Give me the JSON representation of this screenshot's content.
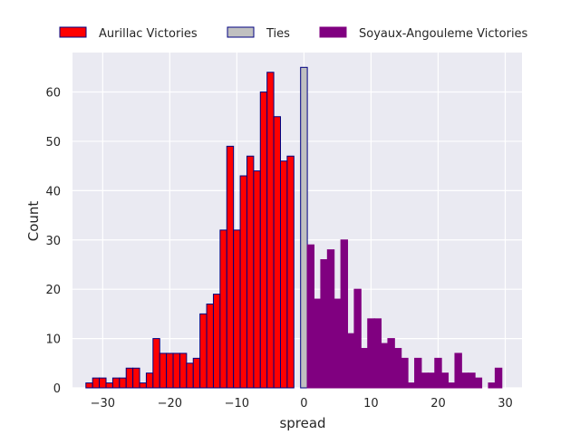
{
  "chart_data": {
    "type": "bar",
    "xlabel": "spread",
    "ylabel": "Count",
    "xlim": [
      -34.5,
      32.5
    ],
    "ylim": [
      0,
      68
    ],
    "xticks": [
      -30,
      -20,
      -10,
      0,
      10,
      20,
      30
    ],
    "yticks": [
      0,
      10,
      20,
      30,
      40,
      50,
      60
    ],
    "grid": true,
    "legend_position": "top",
    "background": "#eaeaf2",
    "series": [
      {
        "name": "Aurillac Victories",
        "color": "#ff0000",
        "edgecolor": "#000080",
        "x": [
          -32,
          -31,
          -30,
          -29,
          -28,
          -27,
          -26,
          -25,
          -24,
          -23,
          -22,
          -21,
          -20,
          -19,
          -18,
          -17,
          -16,
          -15,
          -14,
          -13,
          -12,
          -11,
          -10,
          -9,
          -8,
          -7,
          -6,
          -5,
          -4,
          -3,
          -2,
          -1
        ],
        "values": [
          1,
          2,
          2,
          1,
          2,
          2,
          4,
          4,
          1,
          3,
          10,
          7,
          7,
          7,
          7,
          5,
          6,
          15,
          17,
          19,
          32,
          49,
          32,
          43,
          47,
          44,
          60,
          64,
          55,
          46,
          47,
          0
        ]
      },
      {
        "name": "Ties",
        "color": "#c0c0c0",
        "edgecolor": "#000080",
        "x": [
          0
        ],
        "values": [
          65
        ]
      },
      {
        "name": "Soyaux-Angouleme Victories",
        "color": "#800080",
        "edgecolor": "#800080",
        "x": [
          1,
          2,
          3,
          4,
          5,
          6,
          7,
          8,
          9,
          10,
          11,
          12,
          13,
          14,
          15,
          16,
          17,
          18,
          19,
          20,
          21,
          22,
          23,
          24,
          25,
          26,
          27,
          28,
          29
        ],
        "values": [
          29,
          18,
          26,
          28,
          18,
          30,
          11,
          20,
          8,
          14,
          14,
          9,
          10,
          8,
          6,
          1,
          6,
          3,
          3,
          6,
          3,
          1,
          7,
          3,
          3,
          2,
          0,
          1,
          4
        ]
      }
    ]
  }
}
